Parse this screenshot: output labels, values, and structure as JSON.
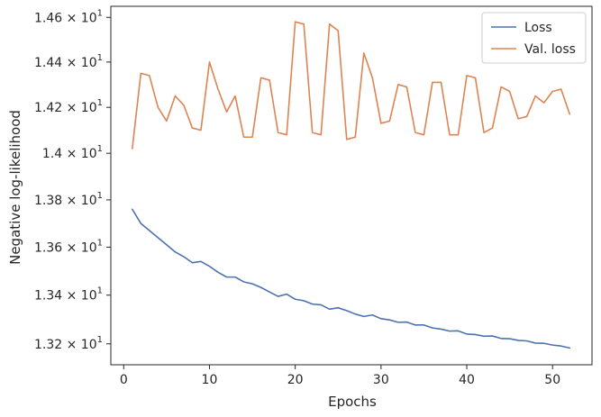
{
  "chart_data": {
    "type": "line",
    "title": "",
    "xlabel": "Epochs",
    "ylabel": "Negative log-likelihood",
    "xlim": [
      -1.5,
      54.6
    ],
    "ylim": [
      13.115,
      14.65
    ],
    "y_scale": "log",
    "grid": false,
    "legend_position": "top-right",
    "x_ticks": [
      0,
      10,
      20,
      30,
      40,
      50
    ],
    "x_tick_labels": [
      "0",
      "10",
      "20",
      "30",
      "40",
      "50"
    ],
    "y_ticks": [
      13.2,
      13.4,
      13.6,
      13.8,
      14.0,
      14.2,
      14.4,
      14.6
    ],
    "y_tick_labels": [
      {
        "mantissa": "1.32",
        "exp": "1"
      },
      {
        "mantissa": "1.34",
        "exp": "1"
      },
      {
        "mantissa": "1.36",
        "exp": "1"
      },
      {
        "mantissa": "1.38",
        "exp": "1"
      },
      {
        "mantissa": "1.4",
        "exp": "1"
      },
      {
        "mantissa": "1.42",
        "exp": "1"
      },
      {
        "mantissa": "1.44",
        "exp": "1"
      },
      {
        "mantissa": "1.46",
        "exp": "1"
      }
    ],
    "x": [
      1,
      2,
      3,
      4,
      5,
      6,
      7,
      8,
      9,
      10,
      11,
      12,
      13,
      14,
      15,
      16,
      17,
      18,
      19,
      20,
      21,
      22,
      23,
      24,
      25,
      26,
      27,
      28,
      29,
      30,
      31,
      32,
      33,
      34,
      35,
      36,
      37,
      38,
      39,
      40,
      41,
      42,
      43,
      44,
      45,
      46,
      47,
      48,
      49,
      50,
      51,
      52
    ],
    "series": [
      {
        "name": "Loss",
        "color": "#4c72b0",
        "values": [
          13.76,
          13.7,
          13.67,
          13.64,
          13.61,
          13.58,
          13.56,
          13.535,
          13.54,
          13.52,
          13.495,
          13.475,
          13.475,
          13.455,
          13.447,
          13.432,
          13.413,
          13.395,
          13.404,
          13.383,
          13.377,
          13.363,
          13.36,
          13.342,
          13.348,
          13.336,
          13.322,
          13.312,
          13.318,
          13.303,
          13.298,
          13.288,
          13.289,
          13.277,
          13.277,
          13.265,
          13.26,
          13.252,
          13.253,
          13.24,
          13.238,
          13.231,
          13.232,
          13.222,
          13.221,
          13.214,
          13.212,
          13.203,
          13.202,
          13.195,
          13.191,
          13.183
        ]
      },
      {
        "name": "Val. loss",
        "color": "#dd8452",
        "values": [
          14.02,
          14.35,
          14.34,
          14.2,
          14.14,
          14.25,
          14.21,
          14.11,
          14.1,
          14.4,
          14.28,
          14.18,
          14.25,
          14.07,
          14.07,
          14.33,
          14.32,
          14.09,
          14.08,
          14.58,
          14.57,
          14.09,
          14.08,
          14.57,
          14.54,
          14.06,
          14.07,
          14.44,
          14.33,
          14.13,
          14.14,
          14.3,
          14.29,
          14.09,
          14.08,
          14.31,
          14.31,
          14.08,
          14.08,
          14.34,
          14.33,
          14.09,
          14.11,
          14.29,
          14.27,
          14.15,
          14.16,
          14.25,
          14.22,
          14.27,
          14.28,
          14.17
        ]
      }
    ]
  }
}
